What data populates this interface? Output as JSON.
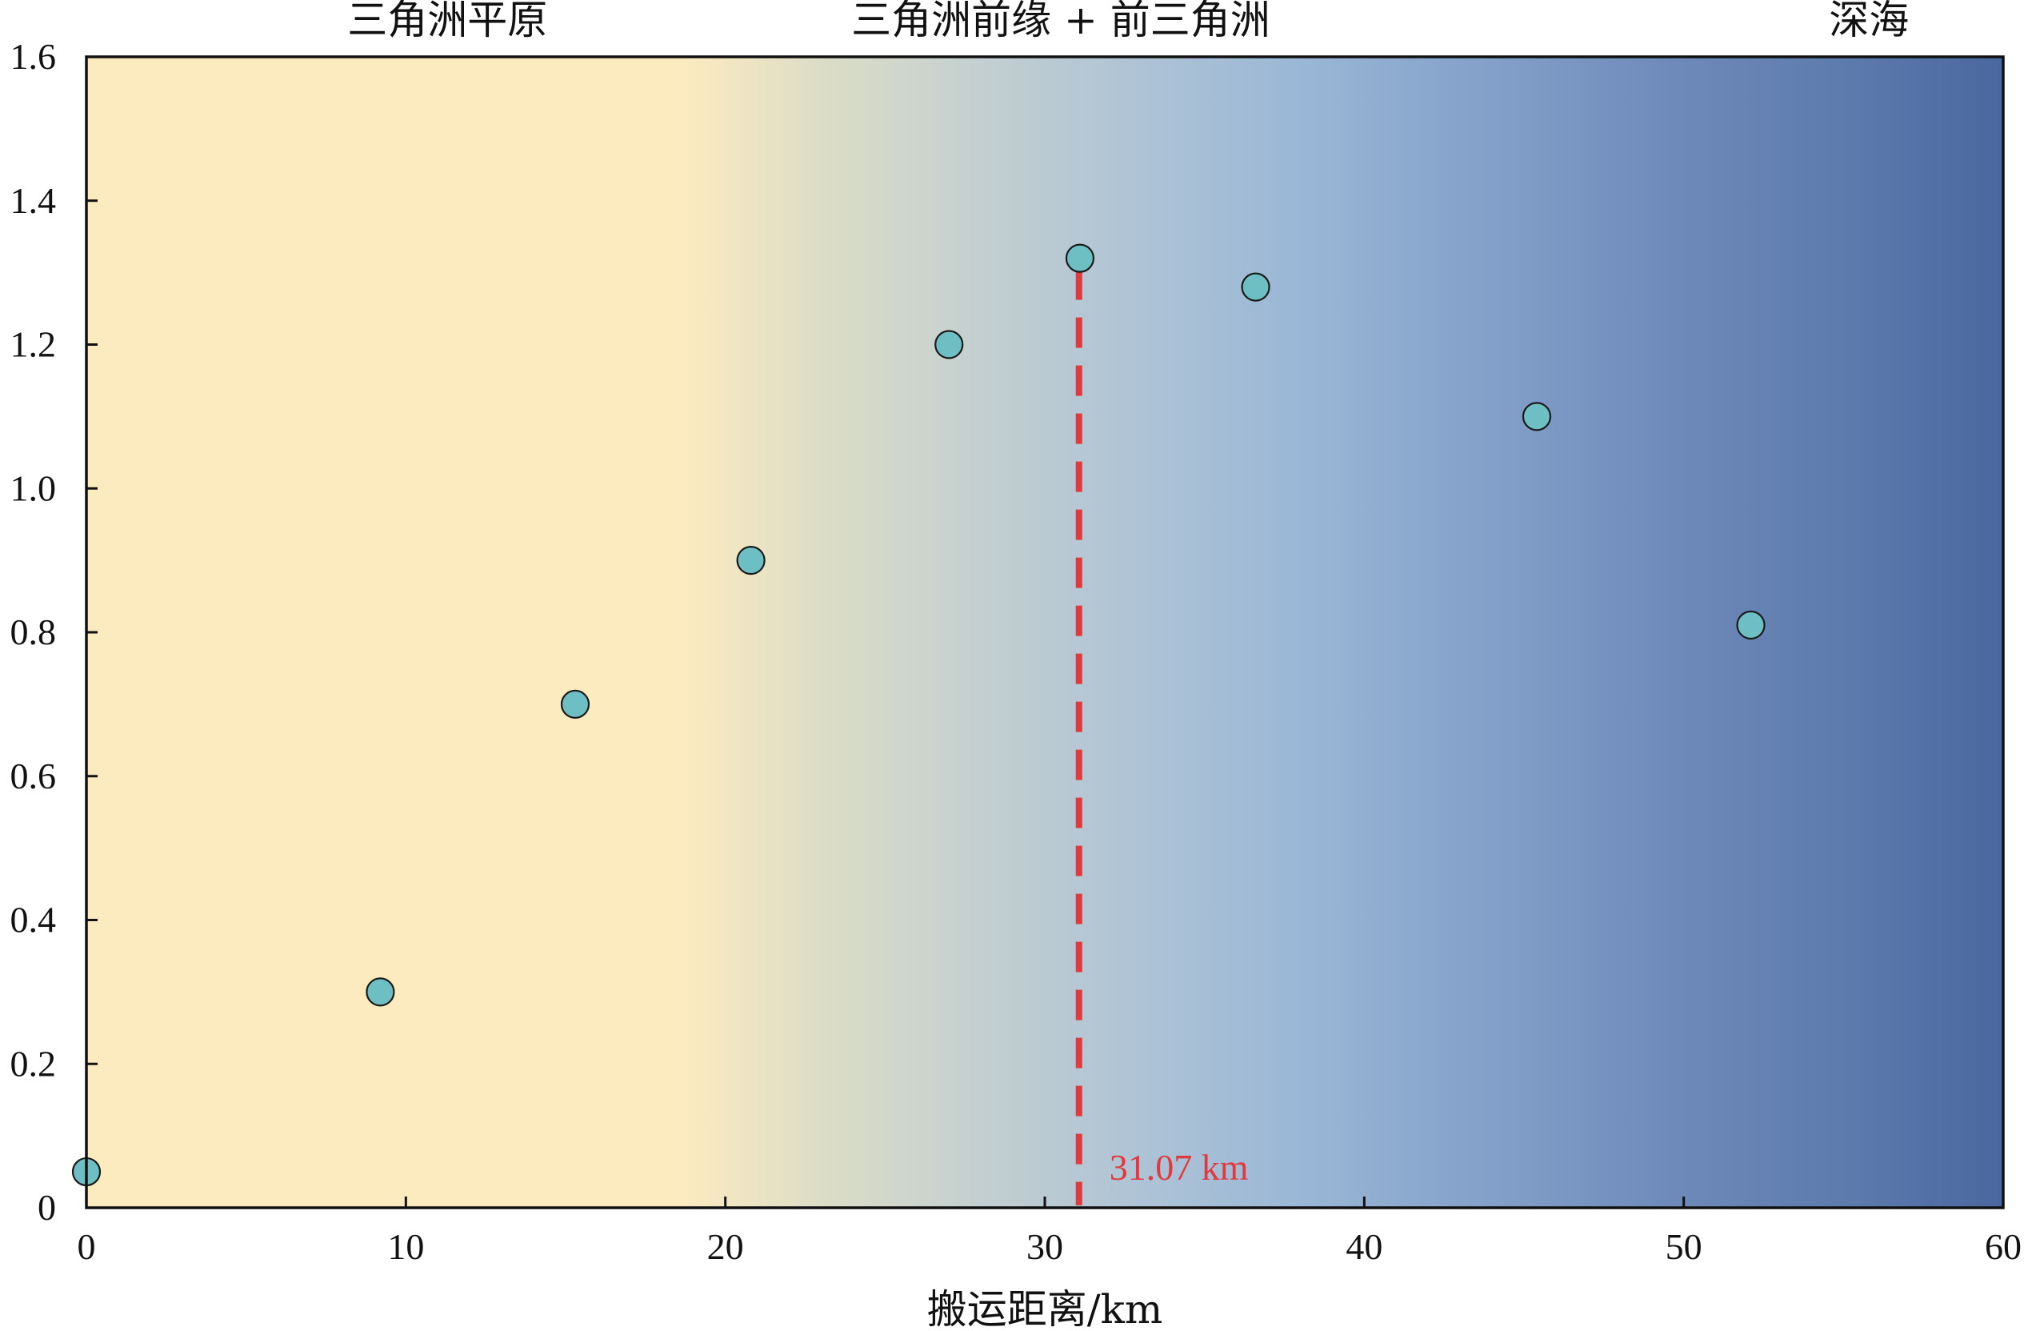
{
  "colors": {
    "plain": "#fdebc0",
    "front": "#a8bcd6",
    "deep": "#4a68a0",
    "point_fill": "#6dbfc3",
    "point_stroke": "#1a1a1a",
    "threshold": "#e03a3e",
    "axis": "#111111"
  },
  "chart_data": {
    "type": "scatter",
    "title": "",
    "xlabel": "搬运距离/km",
    "ylabel": "",
    "xlim": [
      0,
      60
    ],
    "ylim": [
      0,
      1.6
    ],
    "xticks": [
      0,
      10,
      20,
      30,
      40,
      50,
      60
    ],
    "yticks": [
      0,
      0.2,
      0.4,
      0.6,
      0.8,
      1.0,
      1.2,
      1.4,
      1.6
    ],
    "ytick_labels": [
      "0",
      "0.2",
      "0.4",
      "0.6",
      "0.8",
      "1.0",
      "1.2",
      "1.4",
      "1.6"
    ],
    "grid": false,
    "legend": "none",
    "points": [
      {
        "x": 0,
        "y": 0.05
      },
      {
        "x": 9.2,
        "y": 0.3
      },
      {
        "x": 15.3,
        "y": 0.7
      },
      {
        "x": 20.8,
        "y": 0.9
      },
      {
        "x": 27.0,
        "y": 1.2
      },
      {
        "x": 31.1,
        "y": 1.32
      },
      {
        "x": 36.6,
        "y": 1.28
      },
      {
        "x": 45.4,
        "y": 1.1
      },
      {
        "x": 52.1,
        "y": 0.81
      }
    ],
    "threshold": {
      "x": 31.07,
      "y_top": 1.32,
      "label": "31.07 km"
    },
    "zones": [
      {
        "label": "三角洲平原",
        "label_x": 11.3
      },
      {
        "label": "三角洲前缘 + 前三角洲",
        "label_x": 30.5
      },
      {
        "label": "深海",
        "label_x": 55.8
      }
    ],
    "background_gradient": [
      {
        "x": 0,
        "color": "#fdebc0"
      },
      {
        "x": 18.6,
        "color": "#fdebc0"
      },
      {
        "x": 23,
        "color": "#dcddc6"
      },
      {
        "x": 28,
        "color": "#c3cfd0"
      },
      {
        "x": 33,
        "color": "#aec3d6"
      },
      {
        "x": 38,
        "color": "#9ab7d6"
      },
      {
        "x": 44,
        "color": "#82a0c9"
      },
      {
        "x": 50,
        "color": "#6c89b9"
      },
      {
        "x": 55,
        "color": "#5d7bad"
      },
      {
        "x": 60,
        "color": "#4a68a0"
      }
    ]
  }
}
